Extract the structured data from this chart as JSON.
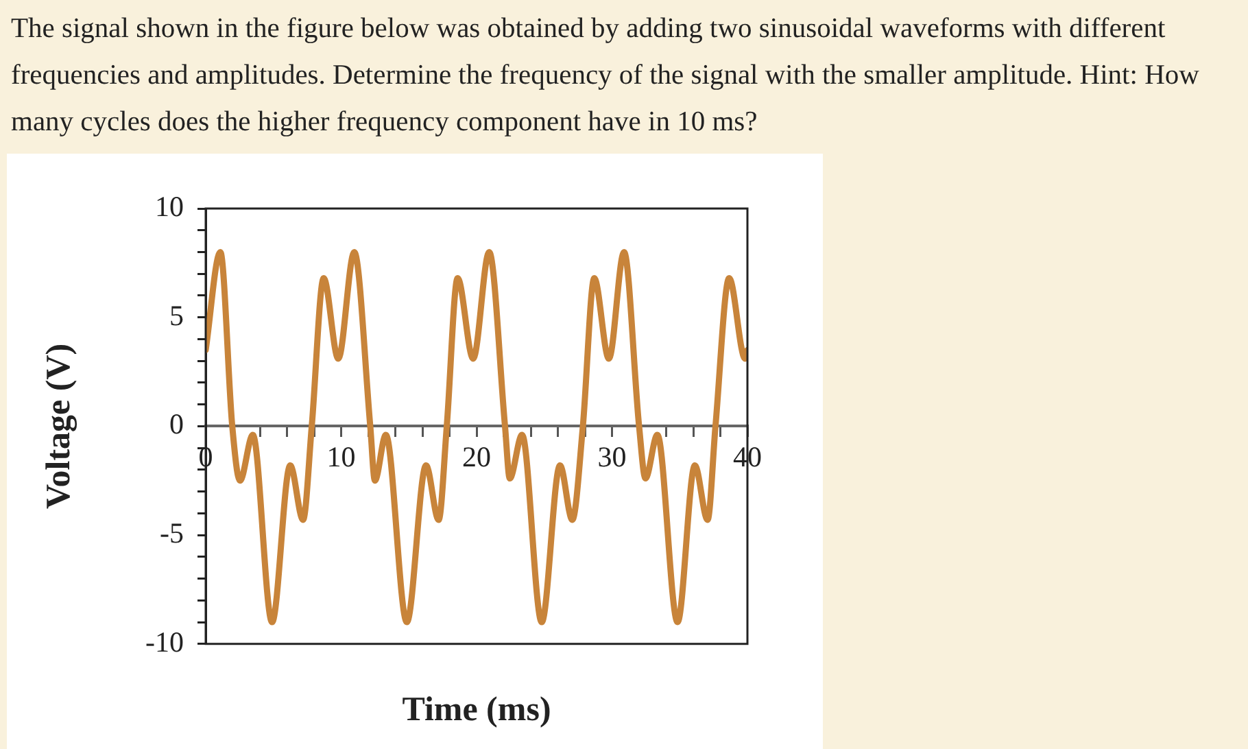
{
  "chart_data": {
    "type": "line",
    "title": "The signal shown in the figure below was obtained by adding two sinusoidal waveforms with different frequencies and amplitudes. Determine the frequency of the signal with the smaller amplitude. Hint: How many cycles does the higher frequency component have in 10 ms?",
    "xlabel": "Time (ms)",
    "ylabel": "Voltage (V)",
    "x": [
      0,
      1.08,
      1.96,
      2.53,
      3.48,
      4.9,
      6.24,
      7.19,
      7.83,
      8.71,
      9.79,
      10.97,
      12.15,
      12.49,
      13.3,
      14.85,
      16.27,
      17.2,
      17.8,
      18.6,
      19.75,
      20.93,
      22.1,
      22.45,
      23.36,
      24.81,
      26.16,
      27.07,
      27.85,
      28.69,
      29.77,
      30.89,
      32.0,
      32.47,
      33.35,
      34.84,
      36.12,
      37.06,
      37.64,
      38.65,
      39.83,
      40
    ],
    "series": [
      {
        "color": "#c8843a",
        "values": [
          3.5,
          8.0,
          0,
          -2.5,
          -0.4,
          -9.0,
          -1.8,
          -4.3,
          0,
          6.8,
          3.1,
          8.0,
          0,
          -2.5,
          -0.4,
          -9.0,
          -1.8,
          -4.3,
          0,
          6.8,
          3.1,
          8.0,
          0,
          -2.4,
          -0.4,
          -9.0,
          -1.8,
          -4.3,
          0,
          6.8,
          3.1,
          8.0,
          0,
          -2.4,
          -0.4,
          -9.0,
          -1.8,
          -4.3,
          0,
          6.8,
          3.1,
          3.5
        ]
      }
    ],
    "xlim": [
      0,
      40
    ],
    "xticks": [
      0,
      {
        "value": 2,
        "label": null
      },
      {
        "value": 4,
        "label": null
      },
      {
        "value": 6,
        "label": null
      },
      {
        "value": 8,
        "label": null
      },
      10,
      {
        "value": 12,
        "label": null
      },
      {
        "value": 14,
        "label": null
      },
      {
        "value": 16,
        "label": null
      },
      {
        "value": 18,
        "label": null
      },
      20,
      {
        "value": 22,
        "label": null
      },
      {
        "value": 24,
        "label": null
      },
      {
        "value": 26,
        "label": null
      },
      {
        "value": 28,
        "label": null
      },
      30,
      {
        "value": 32,
        "label": null
      },
      {
        "value": 34,
        "label": null
      },
      {
        "value": 36,
        "label": null
      },
      {
        "value": 38,
        "label": null
      },
      40
    ],
    "ylim": [
      -10,
      10
    ],
    "yticks": [
      -10,
      {
        "value": -9,
        "label": null
      },
      {
        "value": -8,
        "label": null
      },
      {
        "value": -7,
        "label": null
      },
      {
        "value": -6,
        "label": null
      },
      -5,
      {
        "value": -4,
        "label": null
      },
      {
        "value": -3,
        "label": null
      },
      {
        "value": -2,
        "label": null
      },
      {
        "value": -1,
        "label": null
      },
      0,
      {
        "value": 1,
        "label": null
      },
      {
        "value": 2,
        "label": null
      },
      {
        "value": 3,
        "label": null
      },
      {
        "value": 4,
        "label": null
      },
      5,
      {
        "value": 6,
        "label": null
      },
      {
        "value": 7,
        "label": null
      },
      {
        "value": 8,
        "label": null
      },
      {
        "value": 9,
        "label": null
      },
      10
    ],
    "grid": false,
    "legend": false,
    "marker": "none",
    "line_style": "solid"
  }
}
